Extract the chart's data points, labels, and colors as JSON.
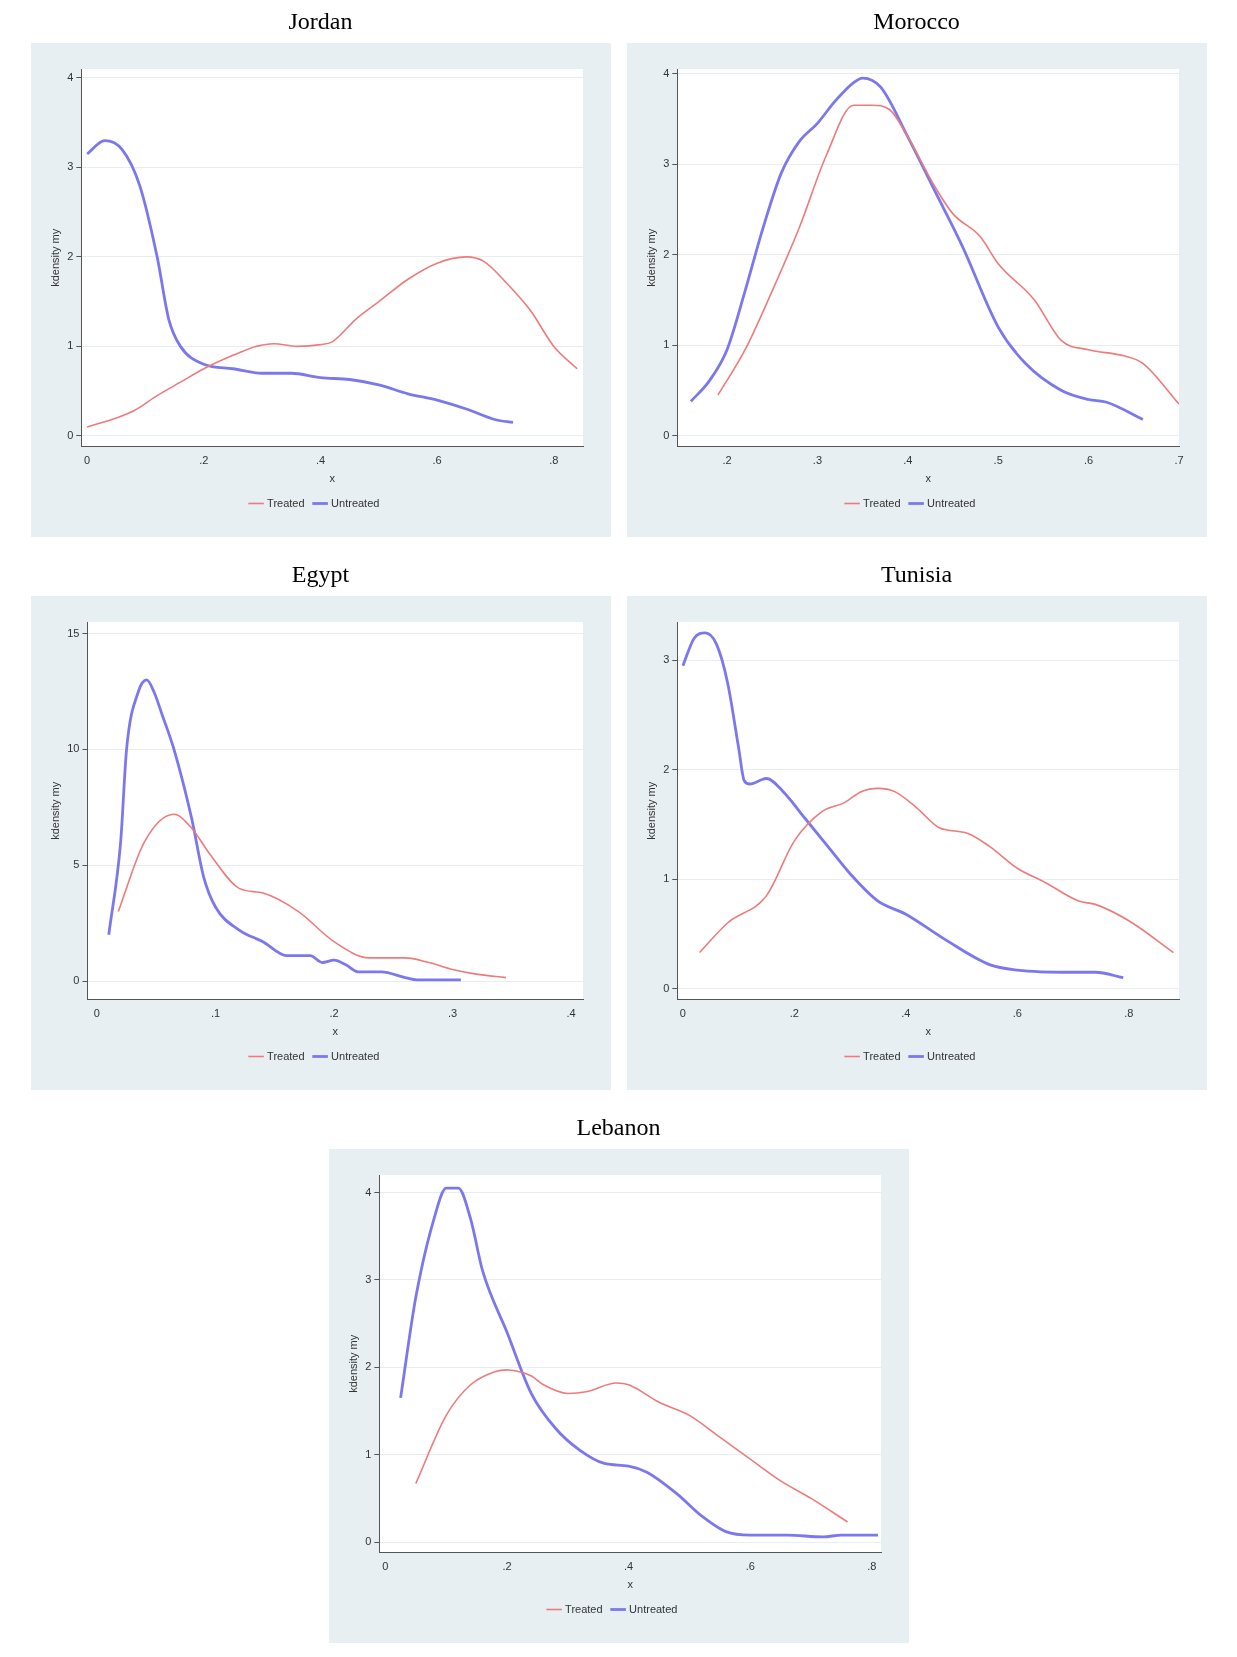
{
  "chart_data": [
    {
      "type": "line",
      "title": "Jordan",
      "xlabel": "x",
      "ylabel": "kdensity my",
      "grid": "y",
      "legend": "bottom",
      "xlim": [
        -0.01,
        0.85
      ],
      "ylim": [
        -0.12,
        4.1
      ],
      "xticks": [
        {
          "value": 0,
          "label": "0"
        },
        {
          "value": 0.2,
          "label": ".2"
        },
        {
          "value": 0.4,
          "label": ".4"
        },
        {
          "value": 0.6,
          "label": ".6"
        },
        {
          "value": 0.8,
          "label": ".8"
        }
      ],
      "yticks": [
        0,
        1,
        2,
        3,
        4
      ],
      "series": [
        {
          "name": "Treated",
          "color": "#ee7b7b",
          "x": [
            0,
            0.05,
            0.08,
            0.12,
            0.16,
            0.2,
            0.25,
            0.29,
            0.32,
            0.36,
            0.4,
            0.42,
            0.46,
            0.5,
            0.55,
            0.6,
            0.65,
            0.68,
            0.72,
            0.76,
            0.8,
            0.84
          ],
          "values": [
            0.1,
            0.2,
            0.28,
            0.45,
            0.6,
            0.75,
            0.9,
            1.0,
            1.03,
            1.0,
            1.02,
            1.05,
            1.3,
            1.5,
            1.75,
            1.93,
            2.0,
            1.95,
            1.7,
            1.4,
            1.0,
            0.75
          ]
        },
        {
          "name": "Untreated",
          "color": "#7b78ee",
          "x": [
            0,
            0.03,
            0.06,
            0.09,
            0.12,
            0.14,
            0.16,
            0.2,
            0.25,
            0.3,
            0.35,
            0.4,
            0.45,
            0.5,
            0.55,
            0.6,
            0.65,
            0.7,
            0.73
          ],
          "values": [
            3.15,
            3.3,
            3.2,
            2.8,
            2.0,
            1.3,
            1.0,
            0.8,
            0.75,
            0.7,
            0.7,
            0.65,
            0.63,
            0.57,
            0.47,
            0.4,
            0.3,
            0.18,
            0.15
          ]
        }
      ]
    },
    {
      "type": "line",
      "title": "Morocco",
      "xlabel": "x",
      "ylabel": "kdensity my",
      "grid": "y",
      "legend": "bottom",
      "xlim": [
        0.145,
        0.7
      ],
      "ylim": [
        -0.12,
        4.05
      ],
      "xticks": [
        {
          "value": 0.2,
          "label": ".2"
        },
        {
          "value": 0.3,
          "label": ".3"
        },
        {
          "value": 0.4,
          "label": ".4"
        },
        {
          "value": 0.5,
          "label": ".5"
        },
        {
          "value": 0.6,
          "label": ".6"
        },
        {
          "value": 0.7,
          "label": ".7"
        }
      ],
      "yticks": [
        0,
        1,
        2,
        3,
        4
      ],
      "series": [
        {
          "name": "Treated",
          "color": "#ee7b7b",
          "x": [
            0.19,
            0.22,
            0.25,
            0.28,
            0.31,
            0.34,
            0.36,
            0.38,
            0.4,
            0.43,
            0.45,
            0.48,
            0.5,
            0.54,
            0.57,
            0.6,
            0.64,
            0.66,
            0.7
          ],
          "values": [
            0.45,
            0.95,
            1.6,
            2.3,
            3.1,
            3.65,
            3.65,
            3.6,
            3.3,
            2.75,
            2.45,
            2.2,
            1.9,
            1.5,
            1.05,
            0.95,
            0.88,
            0.8,
            0.35
          ]
        },
        {
          "name": "Untreated",
          "color": "#7b78ee",
          "x": [
            0.16,
            0.18,
            0.2,
            0.22,
            0.24,
            0.26,
            0.28,
            0.3,
            0.32,
            0.34,
            0.35,
            0.37,
            0.4,
            0.43,
            0.46,
            0.5,
            0.53,
            0.57,
            0.6,
            0.62,
            0.66
          ],
          "values": [
            0.38,
            0.6,
            0.95,
            1.6,
            2.3,
            2.9,
            3.25,
            3.45,
            3.7,
            3.9,
            3.95,
            3.85,
            3.3,
            2.7,
            2.1,
            1.2,
            0.8,
            0.5,
            0.4,
            0.37,
            0.18
          ]
        }
      ]
    },
    {
      "type": "line",
      "title": "Egypt",
      "xlabel": "x",
      "ylabel": "kdensity my",
      "grid": "y",
      "legend": "bottom",
      "xlim": [
        -0.008,
        0.41
      ],
      "ylim": [
        -0.8,
        15.5
      ],
      "xticks": [
        {
          "value": 0,
          "label": "0"
        },
        {
          "value": 0.1,
          "label": ".1"
        },
        {
          "value": 0.2,
          "label": ".2"
        },
        {
          "value": 0.3,
          "label": ".3"
        },
        {
          "value": 0.4,
          "label": ".4"
        }
      ],
      "yticks": [
        0,
        5,
        10,
        15
      ],
      "series": [
        {
          "name": "Treated",
          "color": "#ee7b7b",
          "x": [
            0.018,
            0.04,
            0.065,
            0.08,
            0.095,
            0.12,
            0.14,
            0.17,
            0.2,
            0.23,
            0.26,
            0.28,
            0.3,
            0.32,
            0.345
          ],
          "values": [
            3,
            6,
            7.2,
            6.6,
            5.5,
            4,
            3.8,
            3,
            1.7,
            1,
            1,
            0.8,
            0.5,
            0.3,
            0.15
          ]
        },
        {
          "name": "Untreated",
          "color": "#7b78ee",
          "x": [
            0.01,
            0.02,
            0.025,
            0.035,
            0.042,
            0.048,
            0.055,
            0.065,
            0.08,
            0.09,
            0.1,
            0.12,
            0.14,
            0.16,
            0.18,
            0.19,
            0.2,
            0.21,
            0.22,
            0.24,
            0.26,
            0.27,
            0.307
          ],
          "values": [
            2,
            6,
            10,
            12.5,
            13,
            12.5,
            11.5,
            10,
            7,
            4.5,
            3.2,
            2.2,
            1.7,
            1.1,
            1.1,
            0.8,
            0.9,
            0.7,
            0.4,
            0.4,
            0.15,
            0.05,
            0.05
          ]
        }
      ]
    },
    {
      "type": "line",
      "title": "Tunisia",
      "xlabel": "x",
      "ylabel": "kdensity my",
      "grid": "y",
      "legend": "bottom",
      "xlim": [
        -0.01,
        0.89
      ],
      "ylim": [
        -0.1,
        3.35
      ],
      "xticks": [
        {
          "value": 0,
          "label": "0"
        },
        {
          "value": 0.2,
          "label": ".2"
        },
        {
          "value": 0.4,
          "label": ".4"
        },
        {
          "value": 0.6,
          "label": ".6"
        },
        {
          "value": 0.8,
          "label": ".8"
        }
      ],
      "yticks": [
        0,
        1,
        2,
        3
      ],
      "series": [
        {
          "name": "Treated",
          "color": "#ee7b7b",
          "x": [
            0.03,
            0.08,
            0.15,
            0.2,
            0.25,
            0.29,
            0.32,
            0.35,
            0.38,
            0.42,
            0.46,
            0.51,
            0.55,
            0.6,
            0.65,
            0.71,
            0.74,
            0.8,
            0.88
          ],
          "values": [
            0.33,
            0.6,
            0.85,
            1.35,
            1.62,
            1.7,
            1.8,
            1.83,
            1.8,
            1.65,
            1.47,
            1.42,
            1.3,
            1.1,
            0.97,
            0.8,
            0.77,
            0.62,
            0.33
          ]
        },
        {
          "name": "Untreated",
          "color": "#7b78ee",
          "x": [
            0,
            0.02,
            0.04,
            0.06,
            0.08,
            0.1,
            0.11,
            0.12,
            0.15,
            0.18,
            0.22,
            0.26,
            0.3,
            0.35,
            0.4,
            0.47,
            0.55,
            0.6,
            0.7,
            0.74,
            0.79
          ],
          "values": [
            2.95,
            3.2,
            3.25,
            3.15,
            2.8,
            2.2,
            1.9,
            1.87,
            1.92,
            1.8,
            1.55,
            1.3,
            1.05,
            0.8,
            0.68,
            0.45,
            0.22,
            0.17,
            0.15,
            0.15,
            0.1
          ]
        }
      ]
    },
    {
      "type": "line",
      "title": "Lebanon",
      "xlabel": "x",
      "ylabel": "kdensity my",
      "grid": "y",
      "legend": "bottom",
      "xlim": [
        -0.01,
        0.815
      ],
      "ylim": [
        -0.12,
        4.2
      ],
      "xticks": [
        {
          "value": 0,
          "label": "0"
        },
        {
          "value": 0.2,
          "label": ".2"
        },
        {
          "value": 0.4,
          "label": ".4"
        },
        {
          "value": 0.6,
          "label": ".6"
        },
        {
          "value": 0.8,
          "label": ".8"
        }
      ],
      "yticks": [
        0,
        1,
        2,
        3,
        4
      ],
      "series": [
        {
          "name": "Treated",
          "color": "#ee7b7b",
          "x": [
            0.05,
            0.1,
            0.14,
            0.18,
            0.2,
            0.24,
            0.26,
            0.3,
            0.33,
            0.38,
            0.4,
            0.45,
            0.5,
            0.55,
            0.6,
            0.65,
            0.7,
            0.76
          ],
          "values": [
            0.67,
            1.45,
            1.8,
            1.95,
            1.97,
            1.9,
            1.8,
            1.7,
            1.72,
            1.82,
            1.8,
            1.6,
            1.45,
            1.2,
            0.95,
            0.7,
            0.5,
            0.23
          ]
        },
        {
          "name": "Untreated",
          "color": "#7b78ee",
          "x": [
            0.025,
            0.05,
            0.08,
            0.1,
            0.12,
            0.14,
            0.16,
            0.2,
            0.24,
            0.28,
            0.32,
            0.36,
            0.4,
            0.43,
            0.48,
            0.52,
            0.56,
            0.6,
            0.66,
            0.72,
            0.75,
            0.81
          ],
          "values": [
            1.65,
            2.8,
            3.7,
            4.05,
            4.05,
            3.7,
            3.1,
            2.4,
            1.7,
            1.3,
            1.05,
            0.9,
            0.87,
            0.8,
            0.55,
            0.3,
            0.12,
            0.08,
            0.08,
            0.06,
            0.08,
            0.08
          ]
        }
      ]
    }
  ]
}
